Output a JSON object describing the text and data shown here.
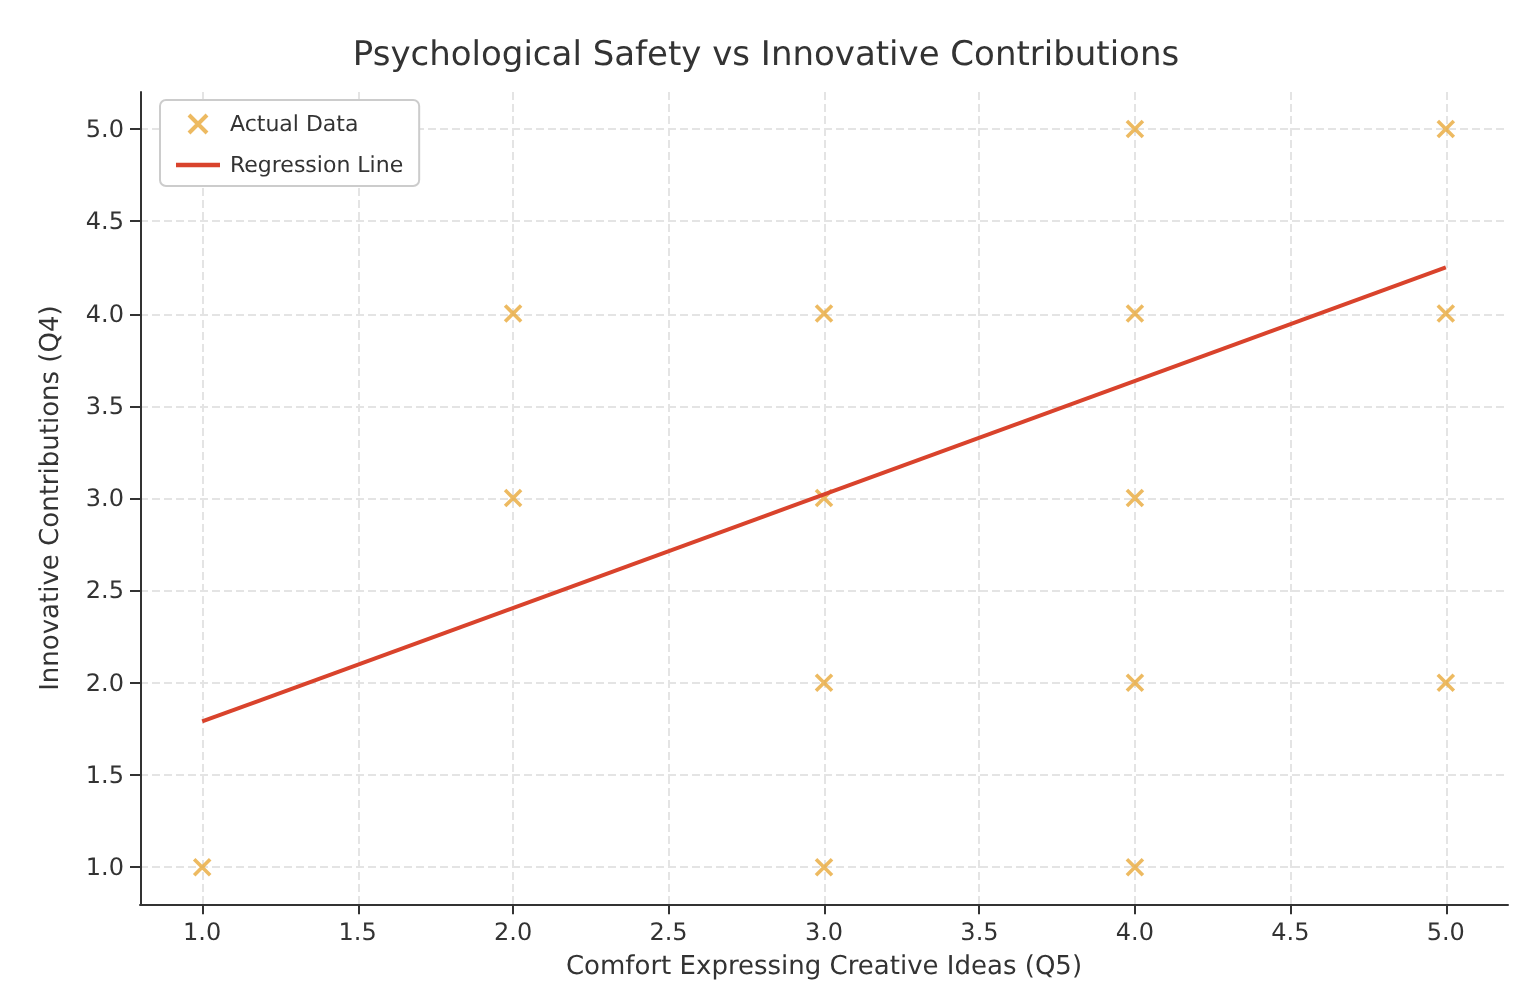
{
  "chart_data": {
    "type": "scatter",
    "title": "Psychological Safety vs Innovative Contributions",
    "xlabel": "Comfort Expressing Creative Ideas (Q5)",
    "ylabel": "Innovative Contributions (Q4)",
    "series": [
      {
        "name": "Actual Data",
        "color": "#e8a93a",
        "marker": "cross",
        "x": [
          1,
          2,
          2,
          3,
          3,
          3,
          3,
          4,
          4,
          4,
          4,
          4,
          5,
          5,
          5
        ],
        "values": [
          1,
          3,
          4,
          1,
          2,
          3,
          4,
          1,
          2,
          3,
          4,
          5,
          2,
          4,
          5
        ]
      },
      {
        "name": "Regression Line",
        "type": "line",
        "color": "#d9432c",
        "line_style": "solid",
        "marker": "none",
        "x": [
          1,
          5
        ],
        "values": [
          1.79,
          4.25
        ]
      }
    ],
    "xlim": [
      0.8,
      5.2
    ],
    "ylim": [
      0.8,
      5.2
    ],
    "xticks": [
      {
        "value": 1,
        "label": "1.0"
      },
      {
        "value": 1.5,
        "label": "1.5"
      },
      {
        "value": 2,
        "label": "2.0"
      },
      {
        "value": 2.5,
        "label": "2.5"
      },
      {
        "value": 3,
        "label": "3.0"
      },
      {
        "value": 3.5,
        "label": "3.5"
      },
      {
        "value": 4,
        "label": "4.0"
      },
      {
        "value": 4.5,
        "label": "4.5"
      },
      {
        "value": 5,
        "label": "5.0"
      }
    ],
    "yticks": [
      {
        "value": 1,
        "label": "1.0"
      },
      {
        "value": 1.5,
        "label": "1.5"
      },
      {
        "value": 2,
        "label": "2.0"
      },
      {
        "value": 2.5,
        "label": "2.5"
      },
      {
        "value": 3,
        "label": "3.0"
      },
      {
        "value": 3.5,
        "label": "3.5"
      },
      {
        "value": 4,
        "label": "4.0"
      },
      {
        "value": 4.5,
        "label": "4.5"
      },
      {
        "value": 5,
        "label": "5.0"
      }
    ],
    "grid": true,
    "legend": "top left"
  }
}
